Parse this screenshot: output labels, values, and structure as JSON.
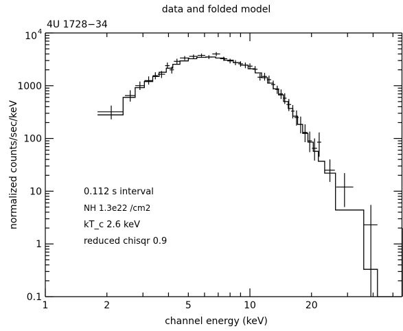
{
  "chart_data": {
    "type": "line",
    "title": "data and folded model",
    "subtitle": "4U 1728−34",
    "xlabel": "channel energy (keV)",
    "ylabel": "normalized counts/sec/keV",
    "xscale": "log",
    "yscale": "log",
    "xlim": [
      1,
      56
    ],
    "ylim": [
      0.1,
      10000
    ],
    "x_tick_labels": [
      "1",
      "2",
      "5",
      "10",
      "20"
    ],
    "x_tick_values": [
      1,
      2,
      5,
      10,
      20
    ],
    "y_tick_labels": [
      "0.1",
      "1",
      "10",
      "100",
      "1000"
    ],
    "y_tick_values": [
      0.1,
      1,
      10,
      100,
      1000
    ],
    "y_top_label": {
      "base": "10",
      "exponent": "4",
      "value": 10000
    },
    "annotations": [
      "0.112 s interval",
      "NH 1.3e22 /cm2",
      "kT_c 2.6 keV",
      "reduced chisqr 0.9"
    ],
    "grid": false,
    "series": [
      {
        "kind": "data",
        "points": [
          {
            "x": 2.1,
            "xlo": 1.8,
            "xhi": 2.4,
            "y": 320,
            "ylo": 230,
            "yhi": 420
          },
          {
            "x": 2.6,
            "xlo": 2.45,
            "xhi": 2.75,
            "y": 650,
            "ylo": 500,
            "yhi": 820
          },
          {
            "x": 2.9,
            "xlo": 2.75,
            "xhi": 3.05,
            "y": 1000,
            "ylo": 830,
            "yhi": 1200
          },
          {
            "x": 3.2,
            "xlo": 3.05,
            "xhi": 3.35,
            "y": 1250,
            "ylo": 1050,
            "yhi": 1500
          },
          {
            "x": 3.45,
            "xlo": 3.35,
            "xhi": 3.55,
            "y": 1550,
            "ylo": 1320,
            "yhi": 1800
          },
          {
            "x": 3.7,
            "xlo": 3.55,
            "xhi": 3.85,
            "y": 1650,
            "ylo": 1400,
            "yhi": 1900
          },
          {
            "x": 3.95,
            "xlo": 3.85,
            "xhi": 4.05,
            "y": 2400,
            "ylo": 2100,
            "yhi": 2750
          },
          {
            "x": 4.15,
            "xlo": 4.05,
            "xhi": 4.25,
            "y": 2000,
            "ylo": 1700,
            "yhi": 2300
          },
          {
            "x": 4.4,
            "xlo": 4.25,
            "xhi": 4.55,
            "y": 2900,
            "ylo": 2600,
            "yhi": 3250
          },
          {
            "x": 4.8,
            "xlo": 4.55,
            "xhi": 5.05,
            "y": 3350,
            "ylo": 3050,
            "yhi": 3650
          },
          {
            "x": 5.3,
            "xlo": 5.05,
            "xhi": 5.55,
            "y": 3600,
            "ylo": 3300,
            "yhi": 3900
          },
          {
            "x": 5.8,
            "xlo": 5.55,
            "xhi": 6.05,
            "y": 3750,
            "ylo": 3450,
            "yhi": 4050
          },
          {
            "x": 6.3,
            "xlo": 6.05,
            "xhi": 6.55,
            "y": 3500,
            "ylo": 3200,
            "yhi": 3800
          },
          {
            "x": 6.85,
            "xlo": 6.55,
            "xhi": 7.15,
            "y": 4000,
            "ylo": 3650,
            "yhi": 4350
          },
          {
            "x": 7.45,
            "xlo": 7.15,
            "xhi": 7.75,
            "y": 3250,
            "ylo": 2950,
            "yhi": 3550
          },
          {
            "x": 8.0,
            "xlo": 7.75,
            "xhi": 8.25,
            "y": 2950,
            "ylo": 2650,
            "yhi": 3250
          },
          {
            "x": 8.5,
            "xlo": 8.25,
            "xhi": 8.75,
            "y": 2750,
            "ylo": 2450,
            "yhi": 3050
          },
          {
            "x": 9.0,
            "xlo": 8.75,
            "xhi": 9.25,
            "y": 2600,
            "ylo": 2300,
            "yhi": 2900
          },
          {
            "x": 9.5,
            "xlo": 9.25,
            "xhi": 9.75,
            "y": 2450,
            "ylo": 2150,
            "yhi": 2750
          },
          {
            "x": 10.0,
            "xlo": 9.75,
            "xhi": 10.3,
            "y": 2350,
            "ylo": 2050,
            "yhi": 2650
          },
          {
            "x": 10.6,
            "xlo": 10.3,
            "xhi": 10.9,
            "y": 2050,
            "ylo": 1750,
            "yhi": 2350
          },
          {
            "x": 11.2,
            "xlo": 10.9,
            "xhi": 11.5,
            "y": 1450,
            "ylo": 1250,
            "yhi": 1700
          },
          {
            "x": 11.8,
            "xlo": 11.5,
            "xhi": 12.1,
            "y": 1500,
            "ylo": 1250,
            "yhi": 1750
          },
          {
            "x": 12.4,
            "xlo": 12.1,
            "xhi": 12.7,
            "y": 1300,
            "ylo": 1100,
            "yhi": 1550
          },
          {
            "x": 13.0,
            "xlo": 12.7,
            "xhi": 13.3,
            "y": 1050,
            "ylo": 850,
            "yhi": 1250
          },
          {
            "x": 13.6,
            "xlo": 13.3,
            "xhi": 13.9,
            "y": 850,
            "ylo": 700,
            "yhi": 1000
          },
          {
            "x": 14.2,
            "xlo": 13.9,
            "xhi": 14.5,
            "y": 700,
            "ylo": 560,
            "yhi": 850
          },
          {
            "x": 14.8,
            "xlo": 14.5,
            "xhi": 15.1,
            "y": 580,
            "ylo": 450,
            "yhi": 720
          },
          {
            "x": 15.5,
            "xlo": 15.1,
            "xhi": 15.9,
            "y": 440,
            "ylo": 330,
            "yhi": 560
          },
          {
            "x": 16.2,
            "xlo": 15.9,
            "xhi": 16.5,
            "y": 330,
            "ylo": 240,
            "yhi": 430
          },
          {
            "x": 16.9,
            "xlo": 16.5,
            "xhi": 17.3,
            "y": 250,
            "ylo": 175,
            "yhi": 340
          },
          {
            "x": 17.7,
            "xlo": 17.3,
            "xhi": 18.1,
            "y": 185,
            "ylo": 125,
            "yhi": 260
          },
          {
            "x": 18.6,
            "xlo": 18.1,
            "xhi": 19.1,
            "y": 130,
            "ylo": 85,
            "yhi": 185
          },
          {
            "x": 19.6,
            "xlo": 19.1,
            "xhi": 20.1,
            "y": 90,
            "ylo": 55,
            "yhi": 135
          },
          {
            "x": 20.7,
            "xlo": 20.1,
            "xhi": 21.3,
            "y": 65,
            "ylo": 38,
            "yhi": 100
          },
          {
            "x": 21.8,
            "xlo": 21.3,
            "xhi": 22.3,
            "y": 85,
            "ylo": 45,
            "yhi": 130
          },
          {
            "x": 24.6,
            "xlo": 23.2,
            "xhi": 26.0,
            "y": 25,
            "ylo": 15,
            "yhi": 40
          },
          {
            "x": 29.0,
            "xlo": 26.4,
            "xhi": 32.0,
            "y": 12,
            "ylo": 5,
            "yhi": 22
          },
          {
            "x": 39.0,
            "xlo": 36.0,
            "xhi": 42.0,
            "y": 2.3,
            "ylo": 0.1,
            "yhi": 5.5
          },
          {
            "x": 56.0,
            "xlo": 55.0,
            "xhi": 57.0,
            "y": 0.7,
            "ylo": 0.1,
            "yhi": 2.0
          }
        ]
      },
      {
        "kind": "model",
        "steps": [
          {
            "x0": 1.8,
            "x1": 2.4,
            "y": 280
          },
          {
            "x0": 2.4,
            "x1": 2.75,
            "y": 600
          },
          {
            "x0": 2.75,
            "x1": 3.05,
            "y": 920
          },
          {
            "x0": 3.05,
            "x1": 3.35,
            "y": 1200
          },
          {
            "x0": 3.35,
            "x1": 3.6,
            "y": 1500
          },
          {
            "x0": 3.6,
            "x1": 3.9,
            "y": 1800
          },
          {
            "x0": 3.9,
            "x1": 4.2,
            "y": 2150
          },
          {
            "x0": 4.2,
            "x1": 4.55,
            "y": 2550
          },
          {
            "x0": 4.55,
            "x1": 5.0,
            "y": 2950
          },
          {
            "x0": 5.0,
            "x1": 5.5,
            "y": 3250
          },
          {
            "x0": 5.5,
            "x1": 6.1,
            "y": 3450
          },
          {
            "x0": 6.1,
            "x1": 6.8,
            "y": 3500
          },
          {
            "x0": 6.8,
            "x1": 7.5,
            "y": 3350
          },
          {
            "x0": 7.5,
            "x1": 8.3,
            "y": 3050
          },
          {
            "x0": 8.3,
            "x1": 9.0,
            "y": 2750
          },
          {
            "x0": 9.0,
            "x1": 9.8,
            "y": 2450
          },
          {
            "x0": 9.8,
            "x1": 10.6,
            "y": 2100
          },
          {
            "x0": 10.6,
            "x1": 11.4,
            "y": 1750
          },
          {
            "x0": 11.4,
            "x1": 12.2,
            "y": 1420
          },
          {
            "x0": 12.2,
            "x1": 13.0,
            "y": 1120
          },
          {
            "x0": 13.0,
            "x1": 13.8,
            "y": 870
          },
          {
            "x0": 13.8,
            "x1": 14.6,
            "y": 670
          },
          {
            "x0": 14.6,
            "x1": 15.4,
            "y": 500
          },
          {
            "x0": 15.4,
            "x1": 16.2,
            "y": 370
          },
          {
            "x0": 16.2,
            "x1": 17.1,
            "y": 265
          },
          {
            "x0": 17.1,
            "x1": 18.1,
            "y": 185
          },
          {
            "x0": 18.1,
            "x1": 19.2,
            "y": 125
          },
          {
            "x0": 19.2,
            "x1": 20.4,
            "y": 85
          },
          {
            "x0": 20.4,
            "x1": 21.6,
            "y": 57
          },
          {
            "x0": 21.6,
            "x1": 23.2,
            "y": 37
          },
          {
            "x0": 23.2,
            "x1": 26.2,
            "y": 22
          },
          {
            "x0": 26.2,
            "x1": 36.0,
            "y": 4.4
          },
          {
            "x0": 36.0,
            "x1": 42.0,
            "y": 0.33
          },
          {
            "x0": 42.0,
            "x1": 50.0,
            "y": 0.1
          }
        ]
      }
    ]
  }
}
